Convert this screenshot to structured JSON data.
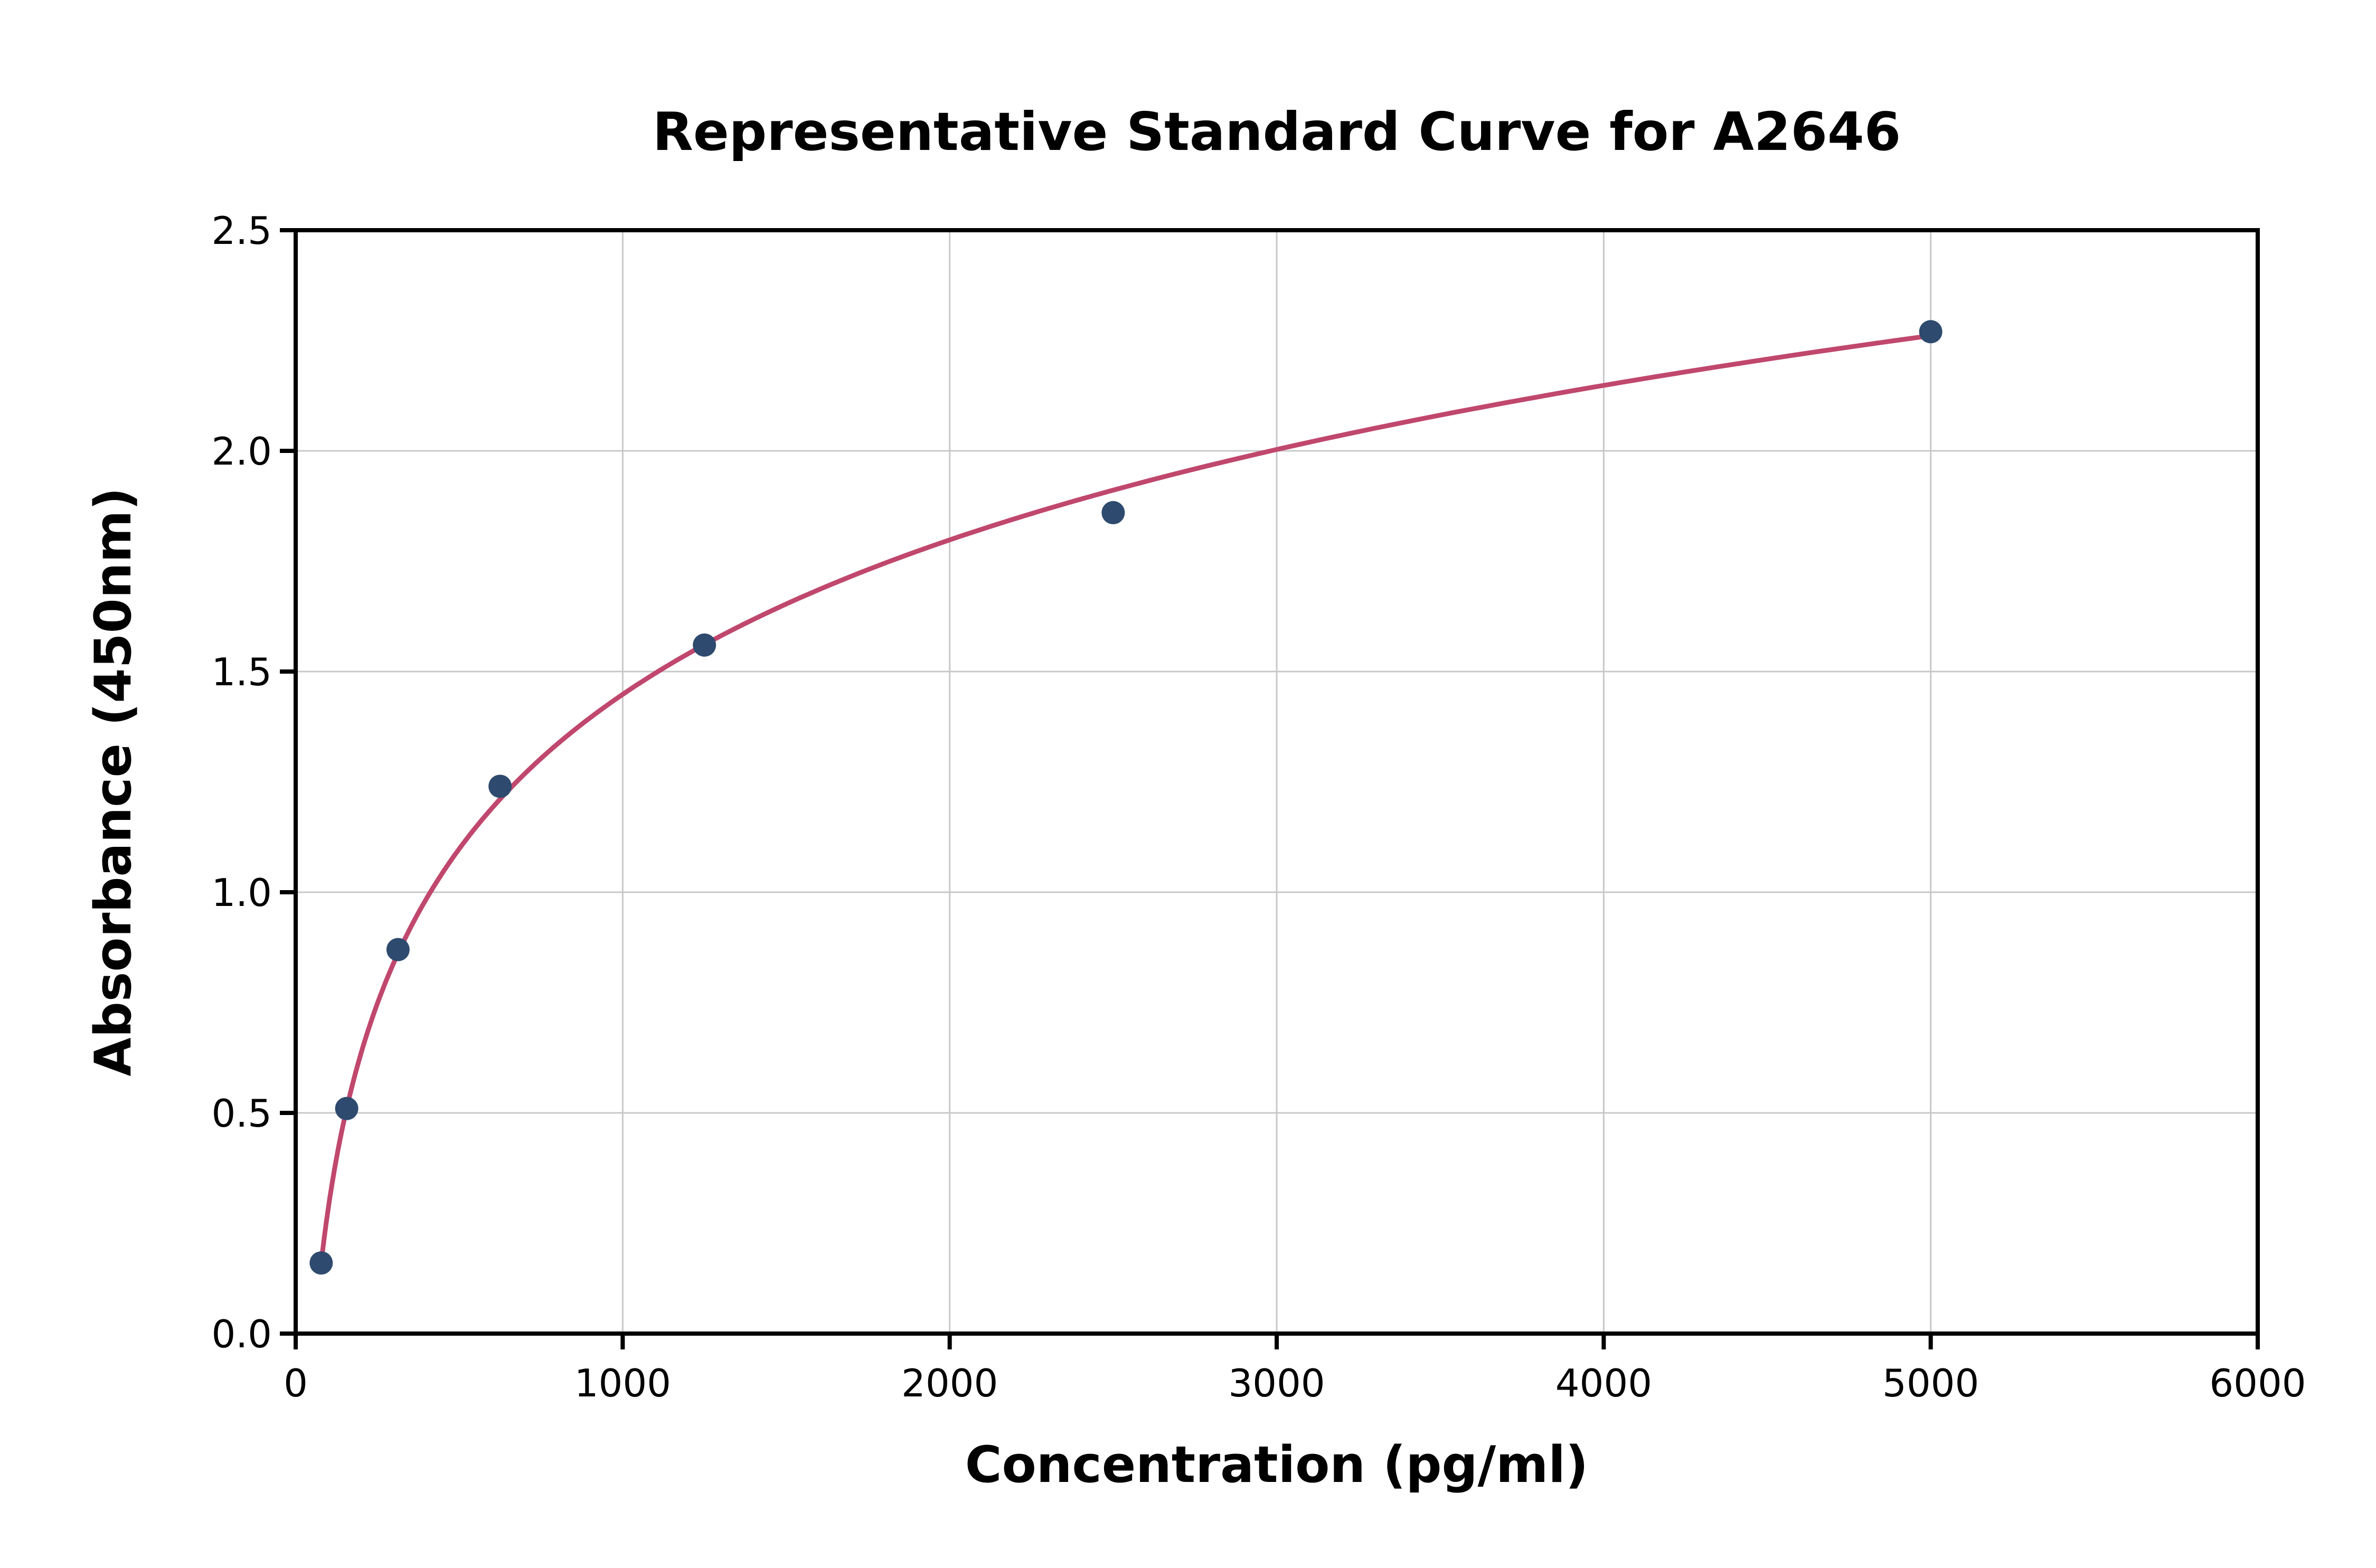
{
  "page": {
    "background": "#ffffff"
  },
  "chart_data": {
    "type": "scatter",
    "title": "Representative Standard Curve for A2646",
    "xlabel": "Concentration (pg/ml)",
    "ylabel": "Absorbance (450nm)",
    "xlim": [
      0,
      6000
    ],
    "ylim": [
      0,
      2.5
    ],
    "x_ticks": [
      0,
      1000,
      2000,
      3000,
      4000,
      5000,
      6000
    ],
    "x_tick_labels": [
      "0",
      "1000",
      "2000",
      "3000",
      "4000",
      "5000",
      "6000"
    ],
    "y_ticks": [
      0,
      0.5,
      1.0,
      1.5,
      2.0,
      2.5
    ],
    "y_tick_labels": [
      "0.0",
      "0.5",
      "1.0",
      "1.5",
      "2.0",
      "2.5"
    ],
    "grid": true,
    "legend": "none",
    "points": {
      "x": [
        78,
        156,
        313,
        625,
        1250,
        2500,
        5000
      ],
      "y": [
        0.16,
        0.51,
        0.87,
        1.24,
        1.56,
        1.86,
        2.27
      ]
    },
    "fit_curve": {
      "model": "logarithmic",
      "description": "y = a + b*ln(x/x0), drawn from x_start to x_end",
      "a": 0.16,
      "b": 0.505,
      "x0": 78,
      "x_start": 78,
      "x_end": 5000
    },
    "colors": {
      "point": "#2e4a6e",
      "curve": "#c0476d",
      "grid": "#c8c8c8",
      "axis": "#000000",
      "text": "#000000",
      "background": "#ffffff"
    }
  }
}
